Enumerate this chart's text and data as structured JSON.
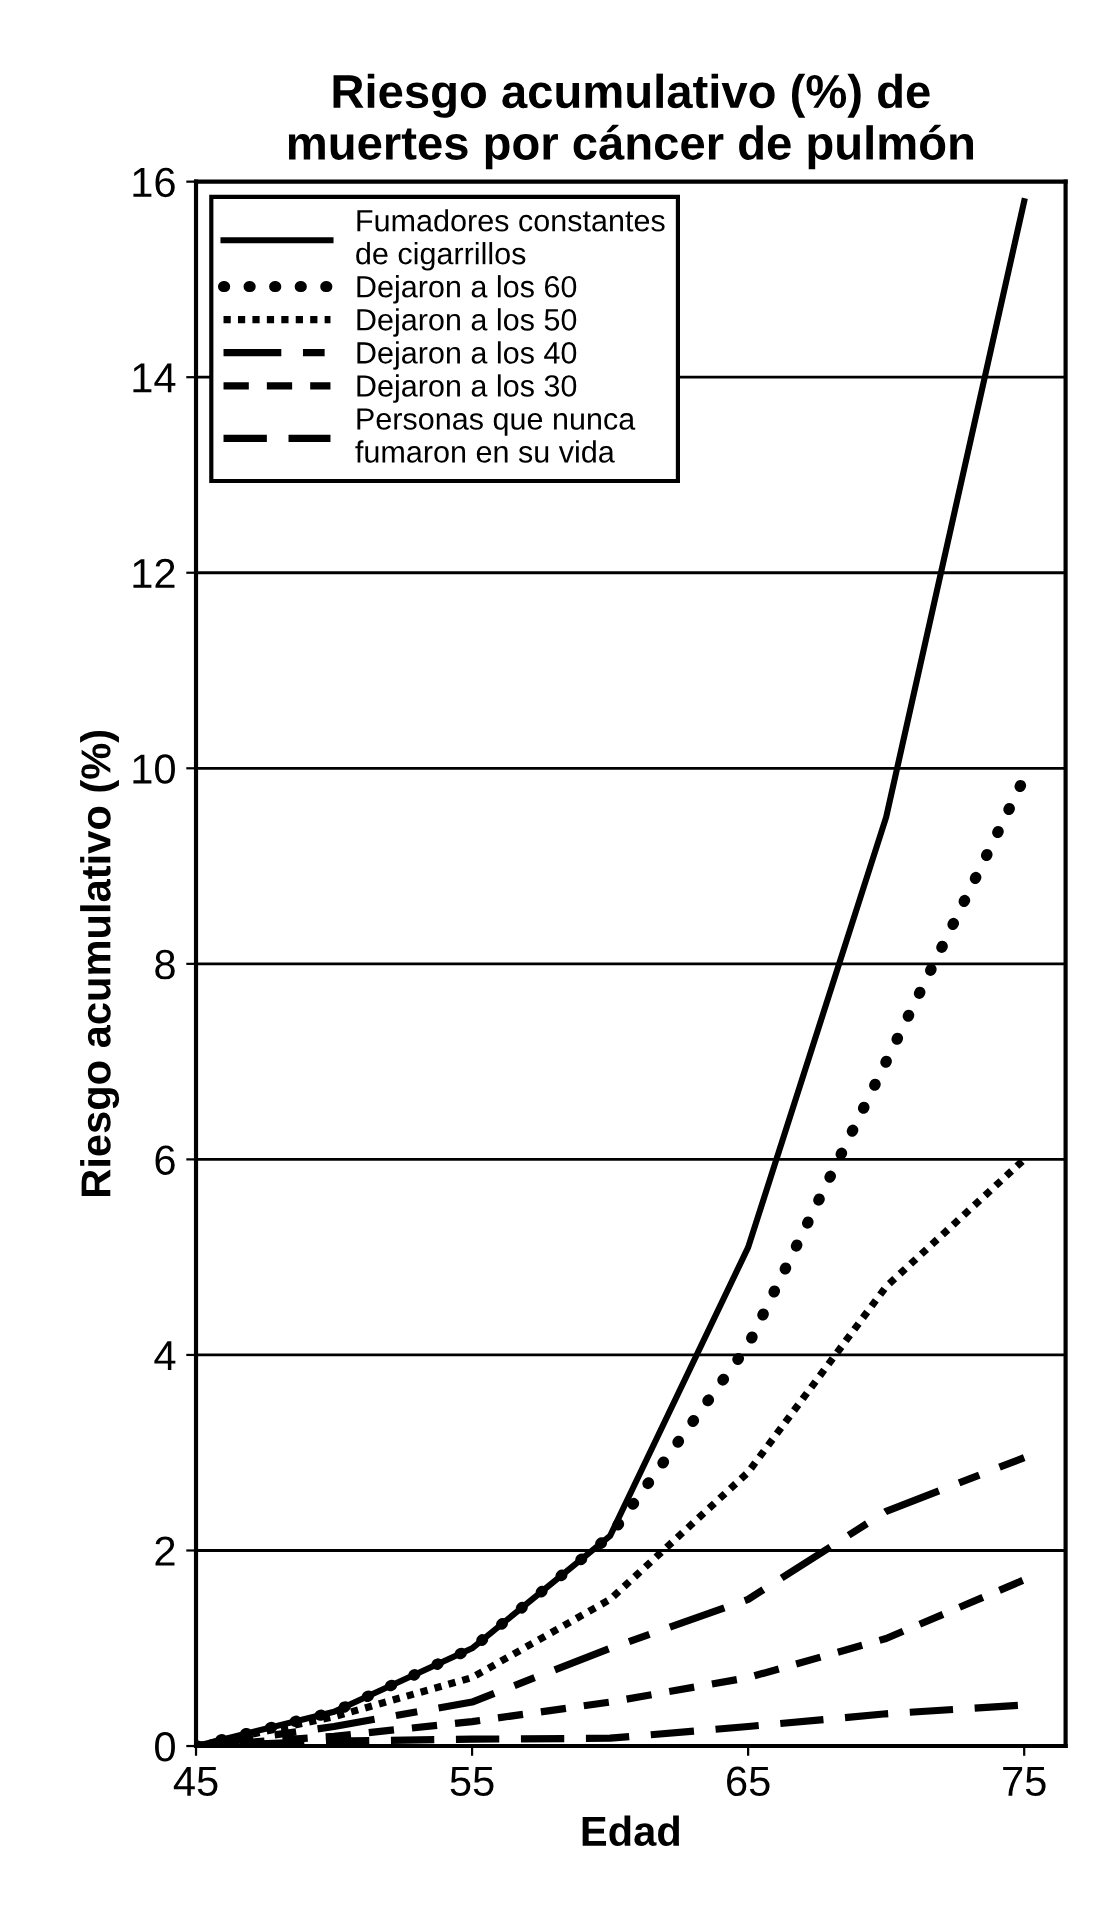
{
  "chart_data": {
    "type": "line",
    "title": "Riesgo acumulativo (%) de\nmuertes por cáncer de pulmón",
    "xlabel": "Edad",
    "ylabel": "Riesgo acumulativo (%)",
    "x": [
      45,
      50,
      55,
      60,
      65,
      70,
      75
    ],
    "series": [
      {
        "name": "Fumadores constantes\nde cigarrillos",
        "color": "#000000",
        "line_style": "solid",
        "values": [
          0,
          0.35,
          1.0,
          2.15,
          5.1,
          9.5,
          15.8
        ]
      },
      {
        "name": "Dejaron a los 60",
        "color": "#000000",
        "line_style": "dotted",
        "values": [
          0,
          0.35,
          1.0,
          2.15,
          4.1,
          7.0,
          9.9
        ]
      },
      {
        "name": "Dejaron a los 50",
        "color": "#000000",
        "line_style": "dotted",
        "values": [
          0,
          0.3,
          0.7,
          1.5,
          2.8,
          4.7,
          6.0
        ]
      },
      {
        "name": "Dejaron a los 40",
        "color": "#000000",
        "line_style": "dashed",
        "values": [
          0,
          0.2,
          0.45,
          1.0,
          1.5,
          2.4,
          2.95
        ]
      },
      {
        "name": "Dejaron a los 30",
        "color": "#000000",
        "line_style": "dashed",
        "values": [
          0,
          0.1,
          0.25,
          0.45,
          0.7,
          1.1,
          1.7
        ]
      },
      {
        "name": "Personas que nunca\nfumaron en su vida",
        "color": "#000000",
        "line_style": "dashed",
        "values": [
          0,
          0.05,
          0.07,
          0.08,
          0.2,
          0.33,
          0.42
        ]
      }
    ],
    "xlim": [
      45,
      76.5
    ],
    "ylim": [
      0,
      16
    ],
    "xticks": [
      45,
      55,
      65,
      75
    ],
    "yticks": [
      0,
      2,
      4,
      6,
      8,
      10,
      12,
      14,
      16
    ],
    "grid": "y",
    "legend": "top left",
    "marker": "none"
  }
}
